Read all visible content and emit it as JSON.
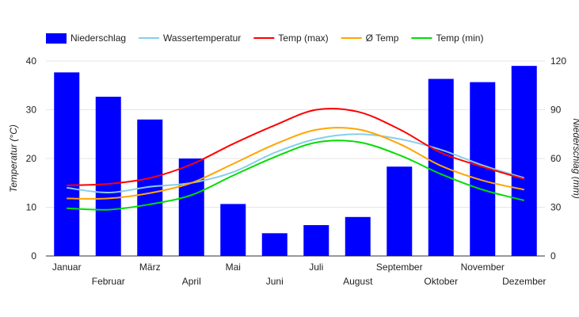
{
  "chart_data": {
    "type": "bar+line",
    "categories": [
      "Januar",
      "Februar",
      "März",
      "April",
      "Mai",
      "Juni",
      "Juli",
      "August",
      "September",
      "Oktober",
      "November",
      "Dezember"
    ],
    "bar_series": {
      "name": "Niederschlag",
      "color": "#0000ff",
      "axis": "right",
      "values": [
        113,
        98,
        84,
        60,
        32,
        14,
        19,
        24,
        55,
        109,
        107,
        117
      ]
    },
    "series": [
      {
        "name": "Wassertemperatur",
        "color": "#87ceeb",
        "axis": "left",
        "values": [
          14.0,
          13.0,
          14.2,
          15.0,
          17.2,
          21.2,
          24.0,
          25.0,
          24.0,
          21.8,
          18.6,
          16.0
        ]
      },
      {
        "name": "Temp (max)",
        "color": "#ff0000",
        "axis": "left",
        "values": [
          14.5,
          14.8,
          16.0,
          18.8,
          23.0,
          26.8,
          30.0,
          29.6,
          26.0,
          21.2,
          18.3,
          15.8
        ]
      },
      {
        "name": "Ø Temp",
        "color": "#ffa500",
        "axis": "left",
        "values": [
          11.8,
          11.8,
          12.9,
          15.0,
          18.9,
          22.9,
          25.9,
          26.0,
          23.0,
          18.5,
          15.5,
          13.6
        ]
      },
      {
        "name": "Temp (min)",
        "color": "#00dd00",
        "axis": "left",
        "values": [
          9.8,
          9.5,
          10.6,
          12.5,
          16.5,
          20.3,
          23.3,
          23.4,
          20.7,
          16.8,
          13.6,
          11.4
        ]
      }
    ],
    "left_axis": {
      "label": "Temperatur (°C)",
      "min": 0,
      "max": 40,
      "ticks": [
        "0",
        "10",
        "20",
        "30",
        "40"
      ]
    },
    "right_axis": {
      "label": "Niederschlag (mm)",
      "min": 0,
      "max": 120,
      "ticks": [
        "0",
        "30",
        "60",
        "90",
        "120"
      ]
    },
    "legend_position": "top",
    "grid": true,
    "title": ""
  }
}
